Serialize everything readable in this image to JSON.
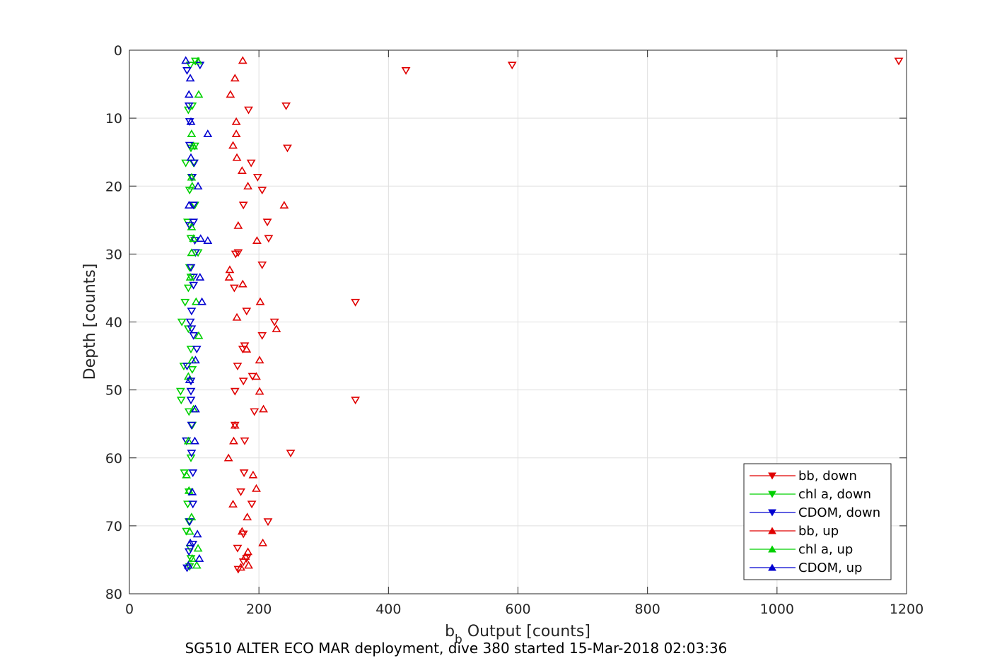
{
  "chart_data": {
    "type": "scatter",
    "caption": "SG510 ALTER ECO MAR deployment, dive 380 started 15-Mar-2018 02:03:36",
    "xlabel_main": "b",
    "xlabel_sub": "b",
    "xlabel_rest": " Output [counts]",
    "ylabel": "Depth [counts]",
    "xlim": [
      0,
      1200
    ],
    "ylim": [
      0,
      80
    ],
    "y_reversed": true,
    "grid": true,
    "legend_position": "bottom-right",
    "x_ticks": [
      "0",
      "200",
      "400",
      "600",
      "800",
      "1000",
      "1200"
    ],
    "y_ticks": [
      "0",
      "10",
      "20",
      "30",
      "40",
      "50",
      "60",
      "70",
      "80"
    ],
    "series": [
      {
        "name": "bb, down",
        "color": "#e00000",
        "marker": "triangle-down",
        "points": [
          [
            1188,
            1.6
          ],
          [
            591,
            2.2
          ],
          [
            427,
            3.0
          ],
          [
            242,
            8.2
          ],
          [
            244,
            14.4
          ],
          [
            184,
            8.8
          ],
          [
            188,
            16.6
          ],
          [
            198,
            18.7
          ],
          [
            205,
            20.6
          ],
          [
            176,
            22.8
          ],
          [
            213,
            25.3
          ],
          [
            215,
            27.7
          ],
          [
            168,
            29.8
          ],
          [
            164,
            30.0
          ],
          [
            205,
            31.6
          ],
          [
            162,
            35.0
          ],
          [
            349,
            37.1
          ],
          [
            181,
            38.4
          ],
          [
            224,
            40.0
          ],
          [
            205,
            42.0
          ],
          [
            178,
            43.5
          ],
          [
            175,
            44.0
          ],
          [
            167,
            46.5
          ],
          [
            190,
            48.0
          ],
          [
            176,
            48.7
          ],
          [
            163,
            50.2
          ],
          [
            349,
            51.5
          ],
          [
            193,
            53.2
          ],
          [
            163,
            55.2
          ],
          [
            178,
            57.5
          ],
          [
            249,
            59.3
          ],
          [
            177,
            62.2
          ],
          [
            172,
            65.0
          ],
          [
            189,
            66.8
          ],
          [
            214,
            69.4
          ],
          [
            176,
            71.2
          ],
          [
            167,
            73.3
          ],
          [
            181,
            74.8
          ],
          [
            176,
            75.3
          ],
          [
            168,
            76.4
          ]
        ]
      },
      {
        "name": "chl a, down",
        "color": "#00d000",
        "marker": "triangle-down",
        "points": [
          [
            102,
            1.6
          ],
          [
            94,
            2.2
          ],
          [
            91,
            8.8
          ],
          [
            97,
            8.2
          ],
          [
            95,
            14.4
          ],
          [
            101,
            14.1
          ],
          [
            87,
            16.6
          ],
          [
            99,
            16.6
          ],
          [
            96,
            18.7
          ],
          [
            93,
            20.6
          ],
          [
            101,
            22.8
          ],
          [
            90,
            25.3
          ],
          [
            95,
            27.7
          ],
          [
            106,
            29.8
          ],
          [
            93,
            32.0
          ],
          [
            95,
            33.4
          ],
          [
            91,
            35.0
          ],
          [
            86,
            37.1
          ],
          [
            81,
            40.0
          ],
          [
            91,
            41.0
          ],
          [
            95,
            44.0
          ],
          [
            84,
            46.5
          ],
          [
            97,
            47.0
          ],
          [
            79,
            50.2
          ],
          [
            80,
            51.5
          ],
          [
            92,
            53.2
          ],
          [
            97,
            55.2
          ],
          [
            88,
            57.5
          ],
          [
            95,
            60.0
          ],
          [
            85,
            62.2
          ],
          [
            92,
            65.0
          ],
          [
            90,
            66.8
          ],
          [
            92,
            69.4
          ],
          [
            88,
            70.8
          ],
          [
            94,
            73.3
          ],
          [
            95,
            74.8
          ],
          [
            93,
            76.0
          ]
        ]
      },
      {
        "name": "CDOM, down",
        "color": "#0000d0",
        "marker": "triangle-down",
        "points": [
          [
            109,
            2.2
          ],
          [
            89,
            3.0
          ],
          [
            92,
            8.2
          ],
          [
            93,
            10.5
          ],
          [
            93,
            14.0
          ],
          [
            100,
            16.6
          ],
          [
            97,
            18.7
          ],
          [
            99,
            22.8
          ],
          [
            93,
            25.8
          ],
          [
            99,
            25.3
          ],
          [
            101,
            28.0
          ],
          [
            102,
            29.8
          ],
          [
            95,
            32.0
          ],
          [
            99,
            33.4
          ],
          [
            99,
            34.6
          ],
          [
            96,
            38.4
          ],
          [
            94,
            40.0
          ],
          [
            96,
            41.0
          ],
          [
            99,
            42.0
          ],
          [
            104,
            44.0
          ],
          [
            89,
            46.5
          ],
          [
            95,
            48.7
          ],
          [
            95,
            50.2
          ],
          [
            95,
            51.5
          ],
          [
            96,
            55.2
          ],
          [
            88,
            57.5
          ],
          [
            96,
            59.3
          ],
          [
            98,
            62.2
          ],
          [
            98,
            66.8
          ],
          [
            93,
            69.4
          ],
          [
            98,
            72.7
          ],
          [
            92,
            73.8
          ],
          [
            89,
            76.2
          ]
        ]
      },
      {
        "name": "bb, up",
        "color": "#e00000",
        "marker": "triangle-up",
        "points": [
          [
            175,
            1.5
          ],
          [
            163,
            4.1
          ],
          [
            156,
            6.5
          ],
          [
            165,
            10.5
          ],
          [
            165,
            12.3
          ],
          [
            160,
            14.0
          ],
          [
            166,
            15.8
          ],
          [
            174,
            17.7
          ],
          [
            183,
            20.0
          ],
          [
            239,
            22.8
          ],
          [
            168,
            25.8
          ],
          [
            197,
            28.0
          ],
          [
            155,
            32.3
          ],
          [
            154,
            33.4
          ],
          [
            175,
            34.4
          ],
          [
            202,
            37.0
          ],
          [
            166,
            39.3
          ],
          [
            227,
            41.0
          ],
          [
            201,
            45.6
          ],
          [
            181,
            44.0
          ],
          [
            196,
            48.0
          ],
          [
            201,
            50.2
          ],
          [
            207,
            52.8
          ],
          [
            163,
            55.2
          ],
          [
            161,
            57.5
          ],
          [
            153,
            60.0
          ],
          [
            191,
            62.5
          ],
          [
            196,
            64.5
          ],
          [
            160,
            66.8
          ],
          [
            182,
            68.7
          ],
          [
            206,
            72.5
          ],
          [
            174,
            70.8
          ],
          [
            183,
            73.8
          ],
          [
            179,
            74.5
          ],
          [
            184,
            75.8
          ],
          [
            172,
            76.1
          ]
        ]
      },
      {
        "name": "chl a, up",
        "color": "#00d000",
        "marker": "triangle-up",
        "points": [
          [
            106,
            1.6
          ],
          [
            107,
            6.5
          ],
          [
            96,
            12.3
          ],
          [
            99,
            14.1
          ],
          [
            96,
            18.7
          ],
          [
            97,
            20.0
          ],
          [
            96,
            26.0
          ],
          [
            99,
            27.7
          ],
          [
            96,
            29.8
          ],
          [
            94,
            33.4
          ],
          [
            103,
            37.0
          ],
          [
            107,
            42.0
          ],
          [
            97,
            45.6
          ],
          [
            91,
            48.0
          ],
          [
            99,
            52.8
          ],
          [
            91,
            57.5
          ],
          [
            88,
            62.5
          ],
          [
            92,
            64.8
          ],
          [
            96,
            68.7
          ],
          [
            93,
            70.8
          ],
          [
            106,
            73.3
          ],
          [
            97,
            74.8
          ],
          [
            104,
            75.8
          ]
        ]
      },
      {
        "name": "CDOM, up",
        "color": "#0000d0",
        "marker": "triangle-up",
        "points": [
          [
            87,
            1.5
          ],
          [
            94,
            4.1
          ],
          [
            92,
            6.5
          ],
          [
            95,
            10.5
          ],
          [
            121,
            12.3
          ],
          [
            95,
            15.8
          ],
          [
            106,
            20.0
          ],
          [
            92,
            22.8
          ],
          [
            110,
            27.7
          ],
          [
            121,
            28.0
          ],
          [
            109,
            33.4
          ],
          [
            112,
            37.0
          ],
          [
            102,
            45.6
          ],
          [
            93,
            48.5
          ],
          [
            102,
            52.8
          ],
          [
            101,
            57.5
          ],
          [
            97,
            65.0
          ],
          [
            105,
            71.2
          ],
          [
            94,
            72.5
          ],
          [
            108,
            74.8
          ],
          [
            91,
            75.8
          ]
        ]
      }
    ]
  }
}
